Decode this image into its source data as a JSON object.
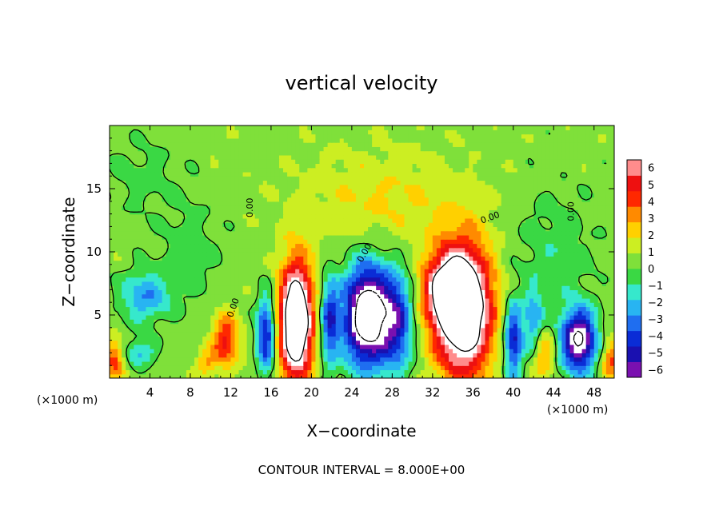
{
  "chart_data": {
    "type": "heatmap",
    "title": "vertical velocity",
    "xlabel": "X−coordinate",
    "ylabel": "Z−coordinate",
    "x_unit_left": "(×1000 m)",
    "x_unit_right": "(×1000 m)",
    "footer": "CONTOUR INTERVAL = 8.000E+00",
    "xlim": [
      0,
      50
    ],
    "ylim": [
      0,
      20
    ],
    "x_ticks": [
      4,
      8,
      12,
      16,
      20,
      24,
      28,
      32,
      36,
      40,
      44,
      48
    ],
    "x_tick_labels": [
      "4",
      "8",
      "12",
      "16",
      "20",
      "24",
      "28",
      "32",
      "36",
      "40",
      "44",
      "48"
    ],
    "y_ticks": [
      5,
      10,
      15
    ],
    "y_tick_labels": [
      "5",
      "10",
      "15"
    ],
    "colorbar": {
      "min": -6,
      "max": 6,
      "tick_values": [
        6,
        5,
        4,
        3,
        2,
        1,
        0,
        -1,
        -2,
        -3,
        -4,
        -5,
        -6
      ],
      "tick_labels": [
        "6",
        "5",
        "4",
        "3",
        "2",
        "1",
        "0",
        "−1",
        "−2",
        "−3",
        "−4",
        "−5",
        "−6"
      ],
      "colors": [
        "#7a10b0",
        "#1a10b0",
        "#0a2cd6",
        "#1f6ef0",
        "#28b4f2",
        "#36e8cc",
        "#3ad844",
        "#7fe03a",
        "#ccee22",
        "#ffd000",
        "#ff8a00",
        "#ff2800",
        "#ee1010",
        "#ff8c8c"
      ]
    },
    "contour_label": "0.00",
    "contour_interval": 8.0,
    "features": [
      {
        "kind": "updraft",
        "x": 18.5,
        "z": 4.5,
        "sx": 1.6,
        "sz": 4.5,
        "amp": 12
      },
      {
        "kind": "updraft",
        "x": 35.0,
        "z": 5.5,
        "sx": 2.8,
        "sz": 5.0,
        "amp": 12
      },
      {
        "kind": "updraft",
        "x": 33.0,
        "z": 7.0,
        "sx": 2.0,
        "sz": 2.5,
        "amp": 5
      },
      {
        "kind": "updraft",
        "x": 11.5,
        "z": 3.0,
        "sx": 1.3,
        "sz": 2.0,
        "amp": 5
      },
      {
        "kind": "updraft",
        "x": 0.5,
        "z": 1.5,
        "sx": 1.0,
        "sz": 1.5,
        "amp": 4
      },
      {
        "kind": "updraft",
        "x": 49.8,
        "z": 1.5,
        "sx": 1.0,
        "sz": 1.5,
        "amp": 4
      },
      {
        "kind": "updraft",
        "x": 9.5,
        "z": 1.2,
        "sx": 1.0,
        "sz": 1.0,
        "amp": 2.5
      },
      {
        "kind": "updraft",
        "x": 43.0,
        "z": 2.0,
        "sx": 1.0,
        "sz": 2.0,
        "amp": 3
      },
      {
        "kind": "updraft",
        "x": 27.0,
        "z": 14.0,
        "sx": 8.0,
        "sz": 4.0,
        "amp": 1.5
      },
      {
        "kind": "downdraft",
        "x": 25.5,
        "z": 5.0,
        "sx": 2.3,
        "sz": 4.0,
        "amp": -11
      },
      {
        "kind": "downdraft",
        "x": 28.5,
        "z": 4.5,
        "sx": 1.6,
        "sz": 4.0,
        "amp": -5
      },
      {
        "kind": "downdraft",
        "x": 15.5,
        "z": 3.5,
        "sx": 0.9,
        "sz": 3.0,
        "amp": -6
      },
      {
        "kind": "downdraft",
        "x": 21.8,
        "z": 4.5,
        "sx": 0.9,
        "sz": 3.5,
        "amp": -5
      },
      {
        "kind": "downdraft",
        "x": 46.5,
        "z": 3.0,
        "sx": 1.7,
        "sz": 2.5,
        "amp": -9
      },
      {
        "kind": "downdraft",
        "x": 40.0,
        "z": 3.0,
        "sx": 0.9,
        "sz": 3.0,
        "amp": -6
      },
      {
        "kind": "downdraft",
        "x": 42.0,
        "z": 4.5,
        "sx": 1.0,
        "sz": 2.5,
        "amp": -3.5
      },
      {
        "kind": "downdraft",
        "x": 3.5,
        "z": 6.5,
        "sx": 2.5,
        "sz": 2.0,
        "amp": -3.5
      },
      {
        "kind": "downdraft",
        "x": 3.0,
        "z": 2.0,
        "sx": 1.5,
        "sz": 1.0,
        "amp": -3
      },
      {
        "kind": "downdraft",
        "x": 8.0,
        "z": 10.0,
        "sx": 3.0,
        "sz": 4.0,
        "amp": -1.2
      },
      {
        "kind": "downdraft",
        "x": 3.0,
        "z": 16.0,
        "sx": 4.0,
        "sz": 3.0,
        "amp": -1.0
      },
      {
        "kind": "downdraft",
        "x": 44.0,
        "z": 10.0,
        "sx": 4.0,
        "sz": 5.0,
        "amp": -1.3
      }
    ],
    "grid": false,
    "legend": "right"
  }
}
